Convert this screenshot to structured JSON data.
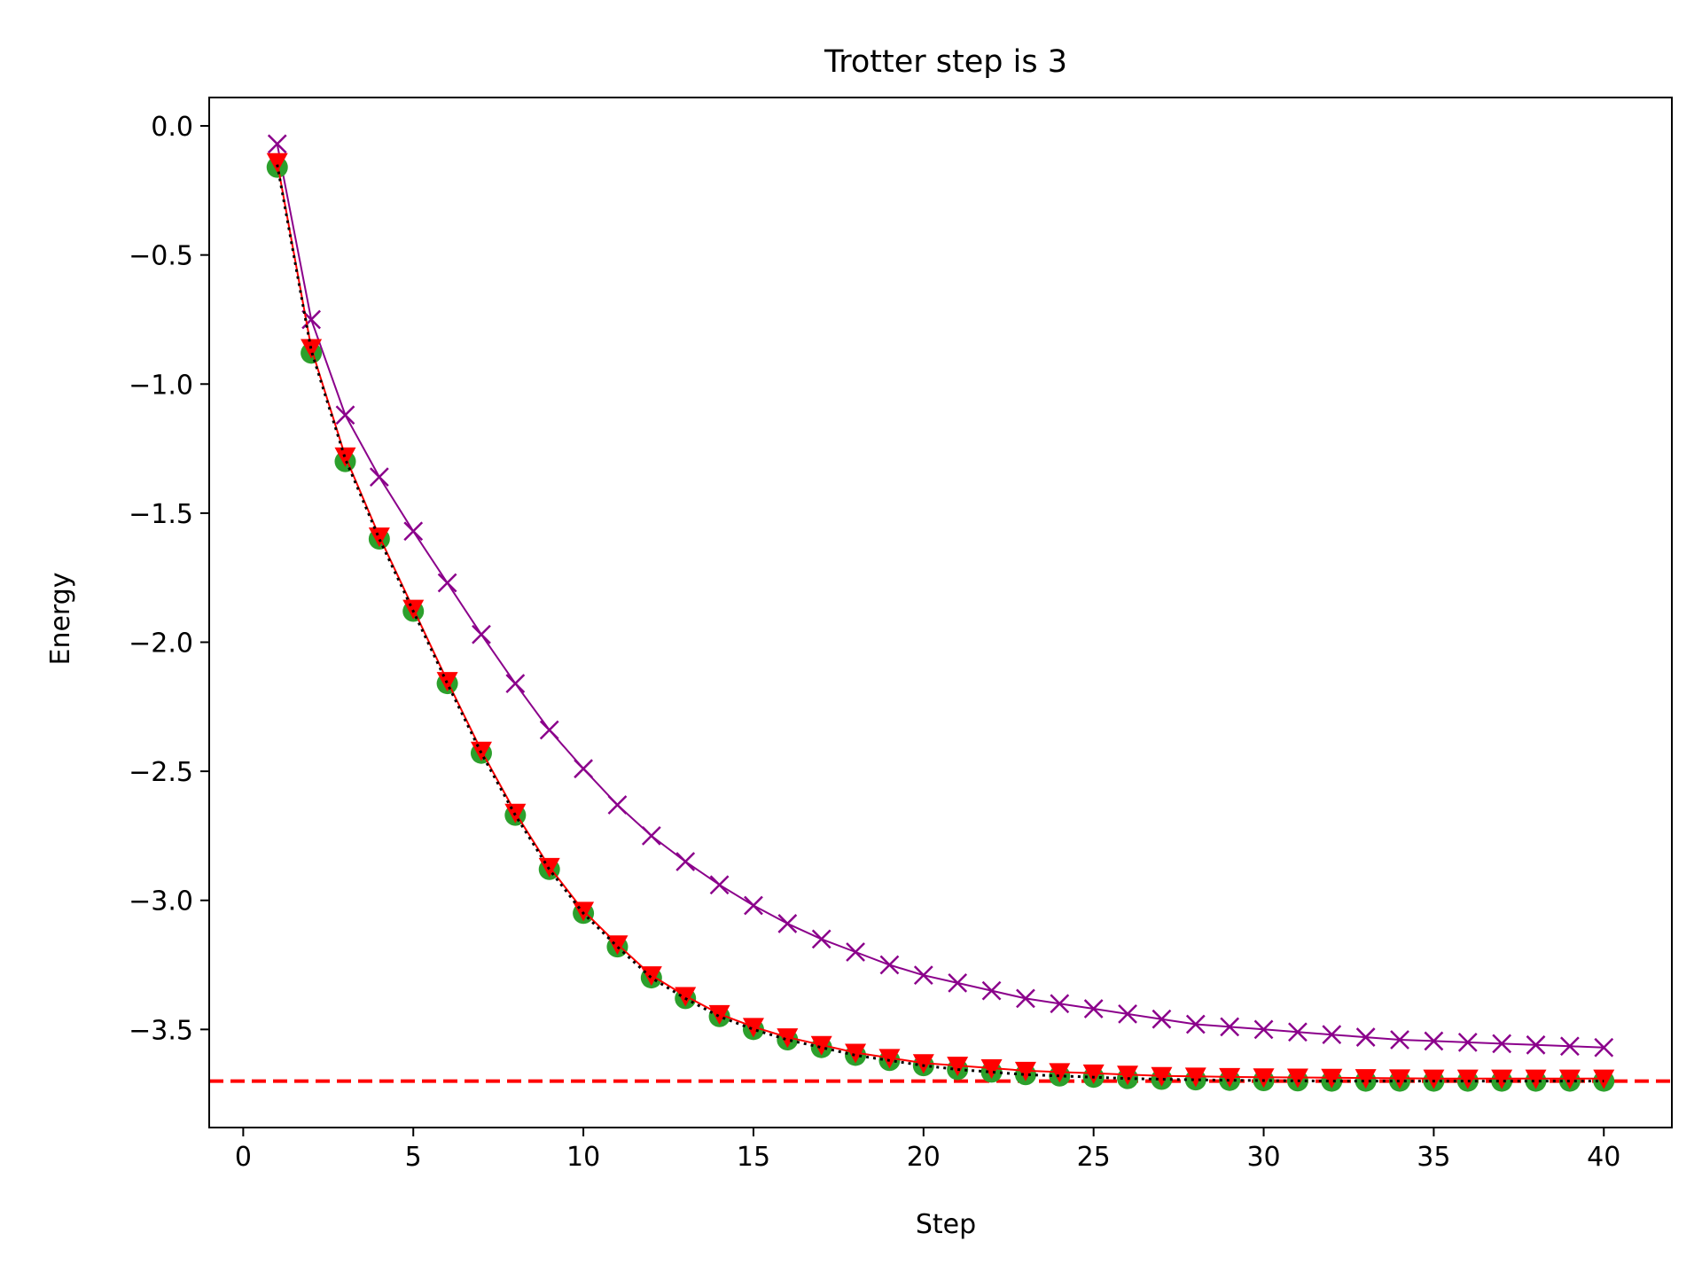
{
  "chart_data": {
    "type": "line",
    "title": "Trotter step is 3",
    "xlabel": "Step",
    "ylabel": "Energy",
    "xlim": [
      -1,
      42
    ],
    "ylim": [
      -3.88,
      0.11
    ],
    "xticks": [
      0,
      5,
      10,
      15,
      20,
      25,
      30,
      35,
      40
    ],
    "xtick_labels": [
      "0",
      "5",
      "10",
      "15",
      "20",
      "25",
      "30",
      "35",
      "40"
    ],
    "yticks": [
      0.0,
      -0.5,
      -1.0,
      -1.5,
      -2.0,
      -2.5,
      -3.0,
      -3.5
    ],
    "ytick_labels": [
      "0.0",
      "−0.5",
      "−1.0",
      "−1.5",
      "−2.0",
      "−2.5",
      "−3.0",
      "−3.5"
    ],
    "grid": false,
    "legend": null,
    "x": [
      1,
      2,
      3,
      4,
      5,
      6,
      7,
      8,
      9,
      10,
      11,
      12,
      13,
      14,
      15,
      16,
      17,
      18,
      19,
      20,
      21,
      22,
      23,
      24,
      25,
      26,
      27,
      28,
      29,
      30,
      31,
      32,
      33,
      34,
      35,
      36,
      37,
      38,
      39,
      40
    ],
    "reference_line": {
      "y": -3.7,
      "color": "#ff0000",
      "style": "dashed"
    },
    "series": [
      {
        "marker": "x",
        "color": "#8b008b",
        "line": "solid",
        "values": [
          -0.07,
          -0.75,
          -1.12,
          -1.36,
          -1.57,
          -1.77,
          -1.97,
          -2.16,
          -2.34,
          -2.49,
          -2.63,
          -2.75,
          -2.85,
          -2.94,
          -3.02,
          -3.09,
          -3.15,
          -3.2,
          -3.25,
          -3.29,
          -3.32,
          -3.35,
          -3.38,
          -3.4,
          -3.42,
          -3.44,
          -3.46,
          -3.48,
          -3.49,
          -3.5,
          -3.51,
          -3.52,
          -3.53,
          -3.54,
          -3.545,
          -3.55,
          -3.555,
          -3.56,
          -3.565,
          -3.57
        ]
      },
      {
        "marker": "circle",
        "color": "#2ca02c",
        "line": "none",
        "values": [
          -0.16,
          -0.88,
          -1.3,
          -1.6,
          -1.88,
          -2.16,
          -2.43,
          -2.67,
          -2.88,
          -3.05,
          -3.18,
          -3.3,
          -3.38,
          -3.45,
          -3.5,
          -3.54,
          -3.57,
          -3.6,
          -3.62,
          -3.64,
          -3.655,
          -3.665,
          -3.675,
          -3.68,
          -3.685,
          -3.69,
          -3.693,
          -3.695,
          -3.697,
          -3.698,
          -3.699,
          -3.7,
          -3.7,
          -3.7,
          -3.7,
          -3.7,
          -3.7,
          -3.7,
          -3.7,
          -3.7
        ]
      },
      {
        "marker": "triangle-down",
        "color": "#ff0000",
        "line": "solid",
        "values": [
          -0.14,
          -0.86,
          -1.28,
          -1.59,
          -1.87,
          -2.15,
          -2.42,
          -2.66,
          -2.87,
          -3.04,
          -3.17,
          -3.29,
          -3.37,
          -3.44,
          -3.49,
          -3.53,
          -3.56,
          -3.59,
          -3.61,
          -3.63,
          -3.64,
          -3.65,
          -3.66,
          -3.665,
          -3.67,
          -3.675,
          -3.68,
          -3.682,
          -3.684,
          -3.685,
          -3.686,
          -3.687,
          -3.688,
          -3.689,
          -3.69,
          -3.69,
          -3.69,
          -3.69,
          -3.69,
          -3.69
        ]
      },
      {
        "marker": "none",
        "color": "#000000",
        "line": "dotted",
        "values": [
          -0.15,
          -0.87,
          -1.29,
          -1.6,
          -1.88,
          -2.16,
          -2.43,
          -2.67,
          -2.88,
          -3.05,
          -3.18,
          -3.3,
          -3.38,
          -3.45,
          -3.5,
          -3.54,
          -3.57,
          -3.6,
          -3.62,
          -3.64,
          -3.655,
          -3.665,
          -3.675,
          -3.68,
          -3.685,
          -3.69,
          -3.693,
          -3.695,
          -3.697,
          -3.698,
          -3.699,
          -3.7,
          -3.7,
          -3.7,
          -3.7,
          -3.7,
          -3.7,
          -3.7,
          -3.7,
          -3.7
        ]
      }
    ]
  }
}
